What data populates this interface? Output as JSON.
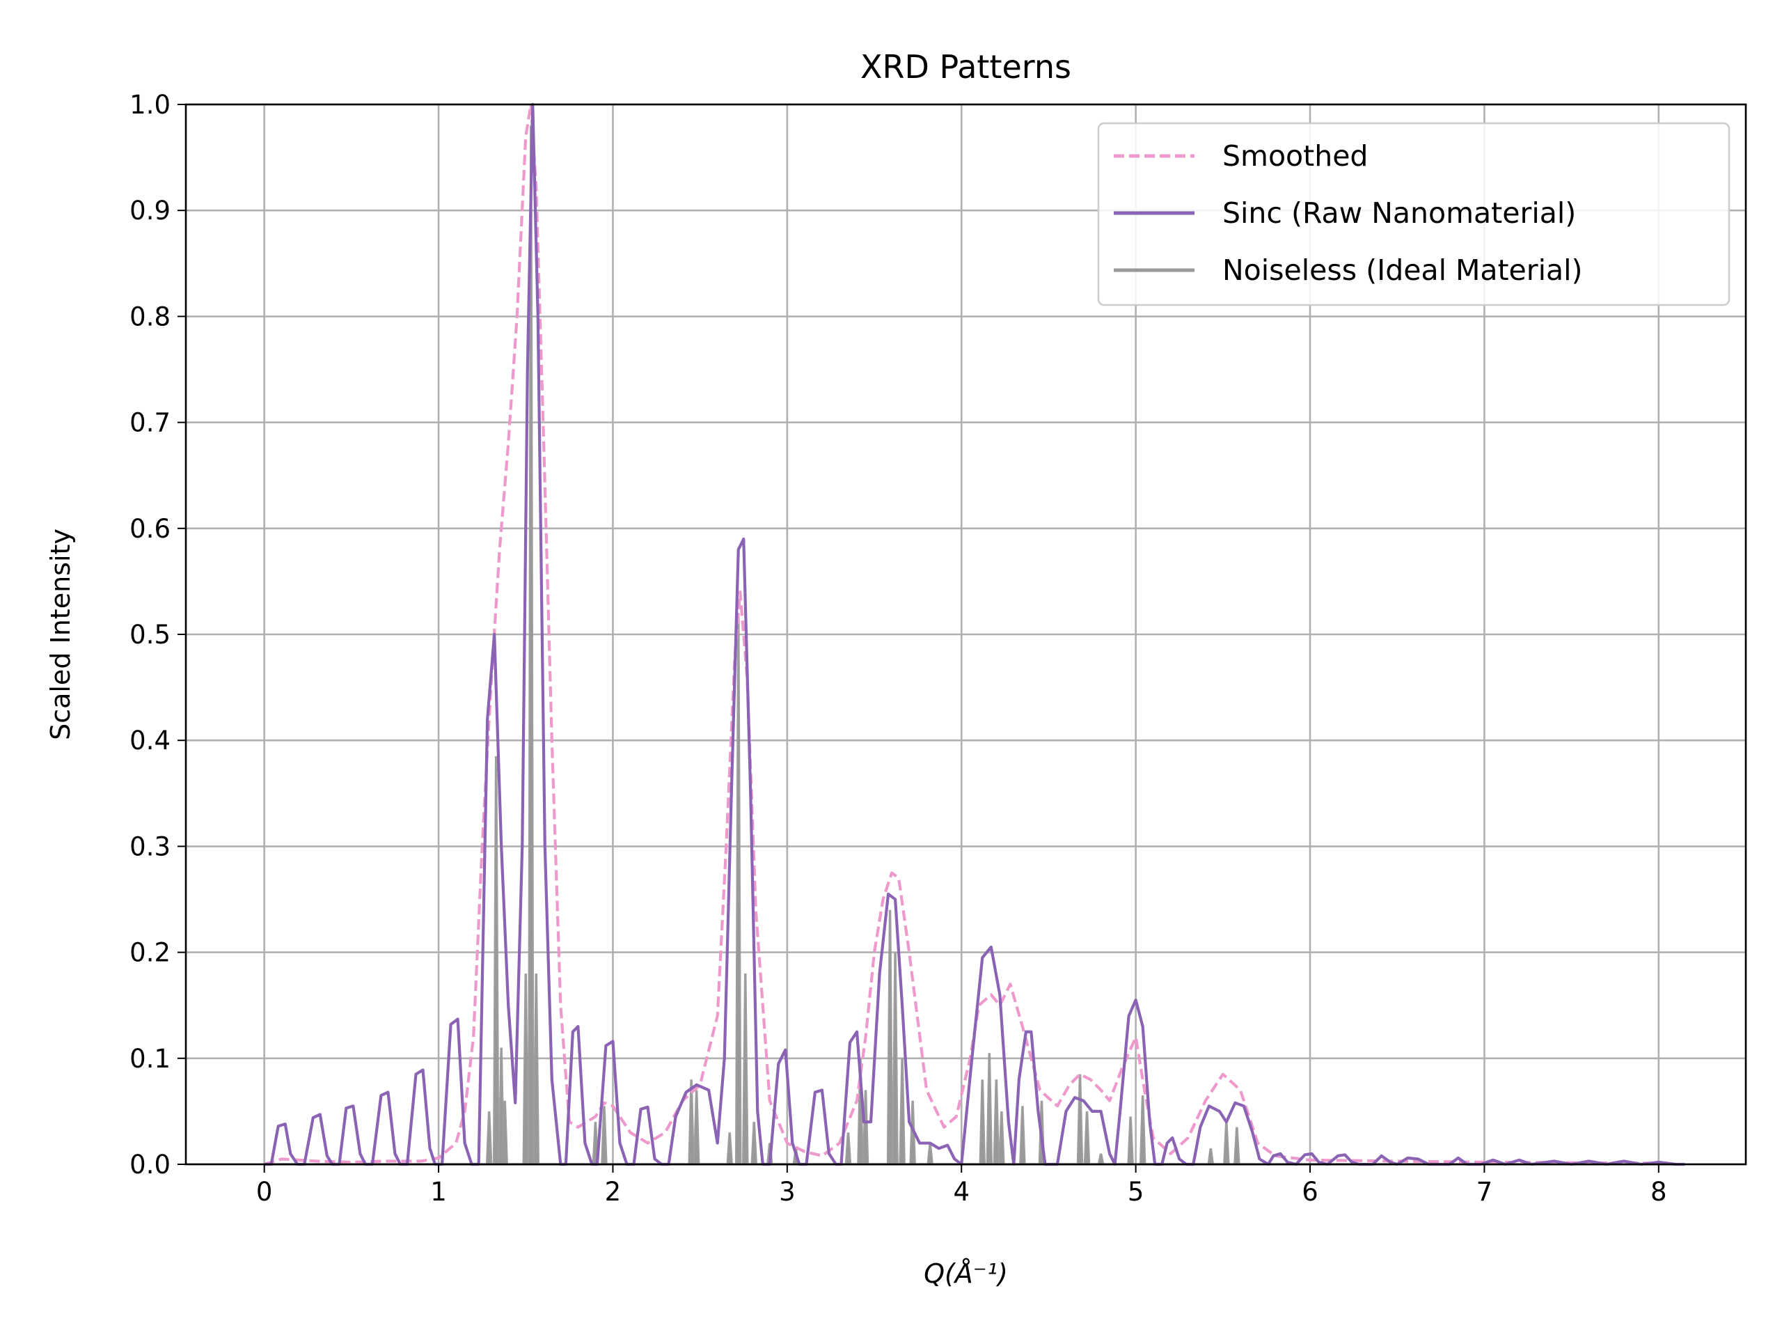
{
  "chart_data": {
    "type": "line",
    "title": "XRD Patterns",
    "xlabel": "Q(Å⁻¹)",
    "ylabel": "Scaled Intensity",
    "xlim": [
      -0.45,
      8.5
    ],
    "ylim": [
      0,
      1.0
    ],
    "xticks": [
      0,
      1,
      2,
      3,
      4,
      5,
      6,
      7,
      8
    ],
    "xtick_labels": [
      "0",
      "1",
      "2",
      "3",
      "4",
      "5",
      "6",
      "7",
      "8"
    ],
    "yticks": [
      0,
      0.1,
      0.2,
      0.3,
      0.4,
      0.5,
      0.6,
      0.7,
      0.8,
      0.9,
      1.0
    ],
    "ytick_labels": [
      "0.0",
      "0.1",
      "0.2",
      "0.3",
      "0.4",
      "0.5",
      "0.6",
      "0.7",
      "0.8",
      "0.9",
      "1.0"
    ],
    "grid": true,
    "legend_position": "top-right",
    "series": [
      {
        "name": "Smoothed",
        "color": "#ee99cc",
        "style": "dashed",
        "points": [
          [
            0,
            0
          ],
          [
            0.1,
            0.005
          ],
          [
            0.3,
            0.003
          ],
          [
            0.5,
            0.002
          ],
          [
            0.7,
            0.003
          ],
          [
            0.9,
            0.003
          ],
          [
            1.0,
            0.006
          ],
          [
            1.1,
            0.02
          ],
          [
            1.15,
            0.05
          ],
          [
            1.2,
            0.12
          ],
          [
            1.25,
            0.3
          ],
          [
            1.3,
            0.45
          ],
          [
            1.35,
            0.58
          ],
          [
            1.4,
            0.68
          ],
          [
            1.45,
            0.8
          ],
          [
            1.5,
            0.97
          ],
          [
            1.53,
            1.0
          ],
          [
            1.56,
            0.92
          ],
          [
            1.6,
            0.7
          ],
          [
            1.65,
            0.4
          ],
          [
            1.7,
            0.15
          ],
          [
            1.75,
            0.04
          ],
          [
            1.8,
            0.035
          ],
          [
            1.9,
            0.045
          ],
          [
            1.95,
            0.058
          ],
          [
            2.0,
            0.055
          ],
          [
            2.1,
            0.03
          ],
          [
            2.2,
            0.02
          ],
          [
            2.3,
            0.03
          ],
          [
            2.4,
            0.06
          ],
          [
            2.5,
            0.075
          ],
          [
            2.6,
            0.14
          ],
          [
            2.65,
            0.3
          ],
          [
            2.7,
            0.48
          ],
          [
            2.73,
            0.54
          ],
          [
            2.77,
            0.46
          ],
          [
            2.82,
            0.24
          ],
          [
            2.9,
            0.06
          ],
          [
            3.0,
            0.02
          ],
          [
            3.1,
            0.012
          ],
          [
            3.2,
            0.008
          ],
          [
            3.3,
            0.02
          ],
          [
            3.4,
            0.06
          ],
          [
            3.45,
            0.12
          ],
          [
            3.5,
            0.2
          ],
          [
            3.55,
            0.25
          ],
          [
            3.6,
            0.275
          ],
          [
            3.64,
            0.27
          ],
          [
            3.7,
            0.2
          ],
          [
            3.8,
            0.07
          ],
          [
            3.9,
            0.035
          ],
          [
            3.97,
            0.045
          ],
          [
            4.05,
            0.1
          ],
          [
            4.1,
            0.15
          ],
          [
            4.17,
            0.16
          ],
          [
            4.22,
            0.15
          ],
          [
            4.28,
            0.17
          ],
          [
            4.35,
            0.13
          ],
          [
            4.45,
            0.07
          ],
          [
            4.55,
            0.055
          ],
          [
            4.62,
            0.075
          ],
          [
            4.68,
            0.085
          ],
          [
            4.74,
            0.08
          ],
          [
            4.8,
            0.07
          ],
          [
            4.85,
            0.06
          ],
          [
            4.92,
            0.09
          ],
          [
            5.0,
            0.12
          ],
          [
            5.05,
            0.07
          ],
          [
            5.1,
            0.025
          ],
          [
            5.2,
            0.01
          ],
          [
            5.3,
            0.025
          ],
          [
            5.4,
            0.06
          ],
          [
            5.5,
            0.085
          ],
          [
            5.6,
            0.07
          ],
          [
            5.7,
            0.02
          ],
          [
            5.8,
            0.008
          ],
          [
            6.0,
            0.004
          ],
          [
            7.0,
            0.002
          ],
          [
            8.0,
            0.001
          ]
        ]
      },
      {
        "name": "Sinc (Raw Nanomaterial)",
        "color": "#8a63b4",
        "style": "solid",
        "points": [
          [
            0.0,
            0.0
          ],
          [
            0.04,
            0.0
          ],
          [
            0.08,
            0.036
          ],
          [
            0.12,
            0.038
          ],
          [
            0.15,
            0.01
          ],
          [
            0.19,
            0.0
          ],
          [
            0.23,
            0.0
          ],
          [
            0.28,
            0.044
          ],
          [
            0.32,
            0.047
          ],
          [
            0.36,
            0.008
          ],
          [
            0.39,
            0.0
          ],
          [
            0.43,
            0.0
          ],
          [
            0.47,
            0.053
          ],
          [
            0.51,
            0.055
          ],
          [
            0.55,
            0.01
          ],
          [
            0.58,
            0.0
          ],
          [
            0.62,
            0.0
          ],
          [
            0.67,
            0.065
          ],
          [
            0.71,
            0.068
          ],
          [
            0.75,
            0.01
          ],
          [
            0.78,
            0.0
          ],
          [
            0.82,
            0.0
          ],
          [
            0.87,
            0.085
          ],
          [
            0.91,
            0.089
          ],
          [
            0.95,
            0.015
          ],
          [
            0.98,
            0.0
          ],
          [
            1.02,
            0.0
          ],
          [
            1.07,
            0.132
          ],
          [
            1.11,
            0.137
          ],
          [
            1.15,
            0.02
          ],
          [
            1.19,
            0.0
          ],
          [
            1.23,
            0.0
          ],
          [
            1.28,
            0.42
          ],
          [
            1.32,
            0.5
          ],
          [
            1.36,
            0.3
          ],
          [
            1.4,
            0.15
          ],
          [
            1.44,
            0.058
          ],
          [
            1.48,
            0.3
          ],
          [
            1.51,
            0.75
          ],
          [
            1.54,
            1.0
          ],
          [
            1.57,
            0.8
          ],
          [
            1.61,
            0.3
          ],
          [
            1.65,
            0.08
          ],
          [
            1.7,
            0.0
          ],
          [
            1.73,
            0.0
          ],
          [
            1.77,
            0.125
          ],
          [
            1.8,
            0.13
          ],
          [
            1.84,
            0.02
          ],
          [
            1.88,
            0.0
          ],
          [
            1.91,
            0.0
          ],
          [
            1.96,
            0.112
          ],
          [
            2.0,
            0.116
          ],
          [
            2.04,
            0.02
          ],
          [
            2.08,
            0.0
          ],
          [
            2.12,
            0.0
          ],
          [
            2.16,
            0.052
          ],
          [
            2.2,
            0.054
          ],
          [
            2.24,
            0.005
          ],
          [
            2.28,
            0.0
          ],
          [
            2.32,
            0.0
          ],
          [
            2.36,
            0.045
          ],
          [
            2.42,
            0.068
          ],
          [
            2.48,
            0.075
          ],
          [
            2.55,
            0.07
          ],
          [
            2.6,
            0.02
          ],
          [
            2.64,
            0.1
          ],
          [
            2.68,
            0.35
          ],
          [
            2.72,
            0.58
          ],
          [
            2.75,
            0.59
          ],
          [
            2.79,
            0.35
          ],
          [
            2.83,
            0.05
          ],
          [
            2.86,
            0.0
          ],
          [
            2.9,
            0.0
          ],
          [
            2.95,
            0.095
          ],
          [
            2.99,
            0.108
          ],
          [
            3.03,
            0.02
          ],
          [
            3.07,
            0.0
          ],
          [
            3.11,
            0.0
          ],
          [
            3.16,
            0.068
          ],
          [
            3.2,
            0.07
          ],
          [
            3.24,
            0.01
          ],
          [
            3.28,
            0.0
          ],
          [
            3.31,
            0.0
          ],
          [
            3.36,
            0.115
          ],
          [
            3.4,
            0.125
          ],
          [
            3.44,
            0.04
          ],
          [
            3.48,
            0.04
          ],
          [
            3.53,
            0.18
          ],
          [
            3.58,
            0.255
          ],
          [
            3.62,
            0.25
          ],
          [
            3.66,
            0.15
          ],
          [
            3.7,
            0.04
          ],
          [
            3.76,
            0.02
          ],
          [
            3.82,
            0.02
          ],
          [
            3.87,
            0.015
          ],
          [
            3.92,
            0.018
          ],
          [
            3.96,
            0.005
          ],
          [
            4.0,
            0.0
          ],
          [
            4.06,
            0.1
          ],
          [
            4.12,
            0.195
          ],
          [
            4.17,
            0.205
          ],
          [
            4.22,
            0.16
          ],
          [
            4.27,
            0.04
          ],
          [
            4.3,
            0.0
          ],
          [
            4.33,
            0.08
          ],
          [
            4.37,
            0.125
          ],
          [
            4.4,
            0.125
          ],
          [
            4.44,
            0.05
          ],
          [
            4.48,
            0.0
          ],
          [
            4.55,
            0.0
          ],
          [
            4.6,
            0.05
          ],
          [
            4.65,
            0.063
          ],
          [
            4.7,
            0.06
          ],
          [
            4.75,
            0.05
          ],
          [
            4.8,
            0.05
          ],
          [
            4.85,
            0.01
          ],
          [
            4.88,
            0.0
          ],
          [
            4.91,
            0.05
          ],
          [
            4.96,
            0.14
          ],
          [
            5.0,
            0.155
          ],
          [
            5.04,
            0.13
          ],
          [
            5.08,
            0.04
          ],
          [
            5.11,
            0.0
          ],
          [
            5.15,
            0.0
          ],
          [
            5.18,
            0.02
          ],
          [
            5.21,
            0.025
          ],
          [
            5.25,
            0.005
          ],
          [
            5.29,
            0.0
          ],
          [
            5.33,
            0.0
          ],
          [
            5.37,
            0.035
          ],
          [
            5.42,
            0.055
          ],
          [
            5.48,
            0.05
          ],
          [
            5.52,
            0.04
          ],
          [
            5.57,
            0.058
          ],
          [
            5.62,
            0.055
          ],
          [
            5.67,
            0.03
          ],
          [
            5.71,
            0.005
          ],
          [
            5.76,
            0.0
          ],
          [
            5.79,
            0.008
          ],
          [
            5.83,
            0.01
          ],
          [
            5.87,
            0.002
          ],
          [
            5.92,
            0.0
          ],
          [
            5.97,
            0.009
          ],
          [
            6.01,
            0.01
          ],
          [
            6.05,
            0.002
          ],
          [
            6.1,
            0.0
          ],
          [
            6.16,
            0.008
          ],
          [
            6.2,
            0.009
          ],
          [
            6.24,
            0.002
          ],
          [
            6.28,
            0.0
          ],
          [
            6.36,
            0.0
          ],
          [
            6.41,
            0.008
          ],
          [
            6.46,
            0.002
          ],
          [
            6.5,
            0.0
          ],
          [
            6.56,
            0.006
          ],
          [
            6.62,
            0.005
          ],
          [
            6.68,
            0.0
          ],
          [
            6.8,
            0.0
          ],
          [
            6.85,
            0.006
          ],
          [
            6.9,
            0.0
          ],
          [
            6.98,
            0.0
          ],
          [
            7.05,
            0.004
          ],
          [
            7.12,
            0.0
          ],
          [
            7.2,
            0.004
          ],
          [
            7.27,
            0.0
          ],
          [
            7.4,
            0.003
          ],
          [
            7.5,
            0.0
          ],
          [
            7.6,
            0.003
          ],
          [
            7.7,
            0.0
          ],
          [
            7.8,
            0.003
          ],
          [
            7.9,
            0.0
          ],
          [
            8.0,
            0.002
          ],
          [
            8.1,
            0.0
          ],
          [
            8.15,
            0.0
          ]
        ]
      },
      {
        "name": "Noiseless (Ideal Material)",
        "color": "#999999",
        "style": "solid",
        "peaks": [
          [
            1.29,
            0.05
          ],
          [
            1.33,
            0.385
          ],
          [
            1.36,
            0.11
          ],
          [
            1.38,
            0.06
          ],
          [
            1.5,
            0.18
          ],
          [
            1.53,
            0.98
          ],
          [
            1.56,
            0.18
          ],
          [
            1.9,
            0.04
          ],
          [
            1.95,
            0.055
          ],
          [
            2.45,
            0.08
          ],
          [
            2.48,
            0.07
          ],
          [
            2.67,
            0.03
          ],
          [
            2.72,
            0.52
          ],
          [
            2.76,
            0.18
          ],
          [
            2.81,
            0.04
          ],
          [
            2.9,
            0.02
          ],
          [
            3.05,
            0.015
          ],
          [
            3.35,
            0.03
          ],
          [
            3.42,
            0.1
          ],
          [
            3.45,
            0.07
          ],
          [
            3.59,
            0.24
          ],
          [
            3.62,
            0.2
          ],
          [
            3.66,
            0.1
          ],
          [
            3.72,
            0.06
          ],
          [
            3.82,
            0.02
          ],
          [
            4.12,
            0.08
          ],
          [
            4.16,
            0.105
          ],
          [
            4.2,
            0.08
          ],
          [
            4.23,
            0.05
          ],
          [
            4.35,
            0.055
          ],
          [
            4.46,
            0.06
          ],
          [
            4.68,
            0.085
          ],
          [
            4.72,
            0.05
          ],
          [
            4.8,
            0.01
          ],
          [
            4.97,
            0.045
          ],
          [
            5.04,
            0.065
          ],
          [
            5.43,
            0.015
          ],
          [
            5.52,
            0.04
          ],
          [
            5.58,
            0.035
          ]
        ]
      }
    ]
  }
}
